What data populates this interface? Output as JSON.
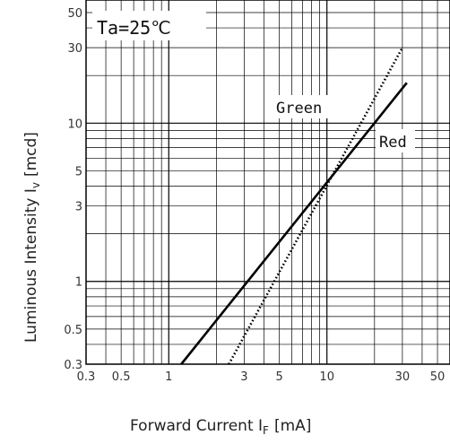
{
  "chart_data": {
    "type": "line",
    "title": "",
    "annotation": "Ta=25℃",
    "xlabel": "Forward Current I",
    "xlabel_sub": "F",
    "xlabel_unit": "[mA]",
    "ylabel": "Luminous Intensity I",
    "ylabel_sub": "v",
    "ylabel_unit": "[mcd]",
    "x_scale": "log",
    "y_scale": "log",
    "xlim": [
      0.3,
      60
    ],
    "ylim": [
      0.3,
      60
    ],
    "grid": true,
    "x_ticks": [
      {
        "value": 0.3,
        "label": "0.3"
      },
      {
        "value": 0.5,
        "label": "0.5"
      },
      {
        "value": 1,
        "label": "1"
      },
      {
        "value": 3,
        "label": "3"
      },
      {
        "value": 5,
        "label": "5"
      },
      {
        "value": 10,
        "label": "10"
      },
      {
        "value": 30,
        "label": "30"
      },
      {
        "value": 50,
        "label": "50"
      }
    ],
    "y_ticks": [
      {
        "value": 0.3,
        "label": "0.3"
      },
      {
        "value": 0.5,
        "label": "0.5"
      },
      {
        "value": 1,
        "label": "1"
      },
      {
        "value": 3,
        "label": "3"
      },
      {
        "value": 5,
        "label": "5"
      },
      {
        "value": 10,
        "label": "10"
      },
      {
        "value": 30,
        "label": "30"
      },
      {
        "value": 50,
        "label": "50"
      }
    ],
    "series": [
      {
        "name": "Green",
        "style": "dotted",
        "color": "#000000",
        "x": [
          2.4,
          30
        ],
        "y": [
          0.3,
          30
        ]
      },
      {
        "name": "Red",
        "style": "solid",
        "color": "#000000",
        "x": [
          1.2,
          32
        ],
        "y": [
          0.3,
          18
        ]
      }
    ]
  }
}
